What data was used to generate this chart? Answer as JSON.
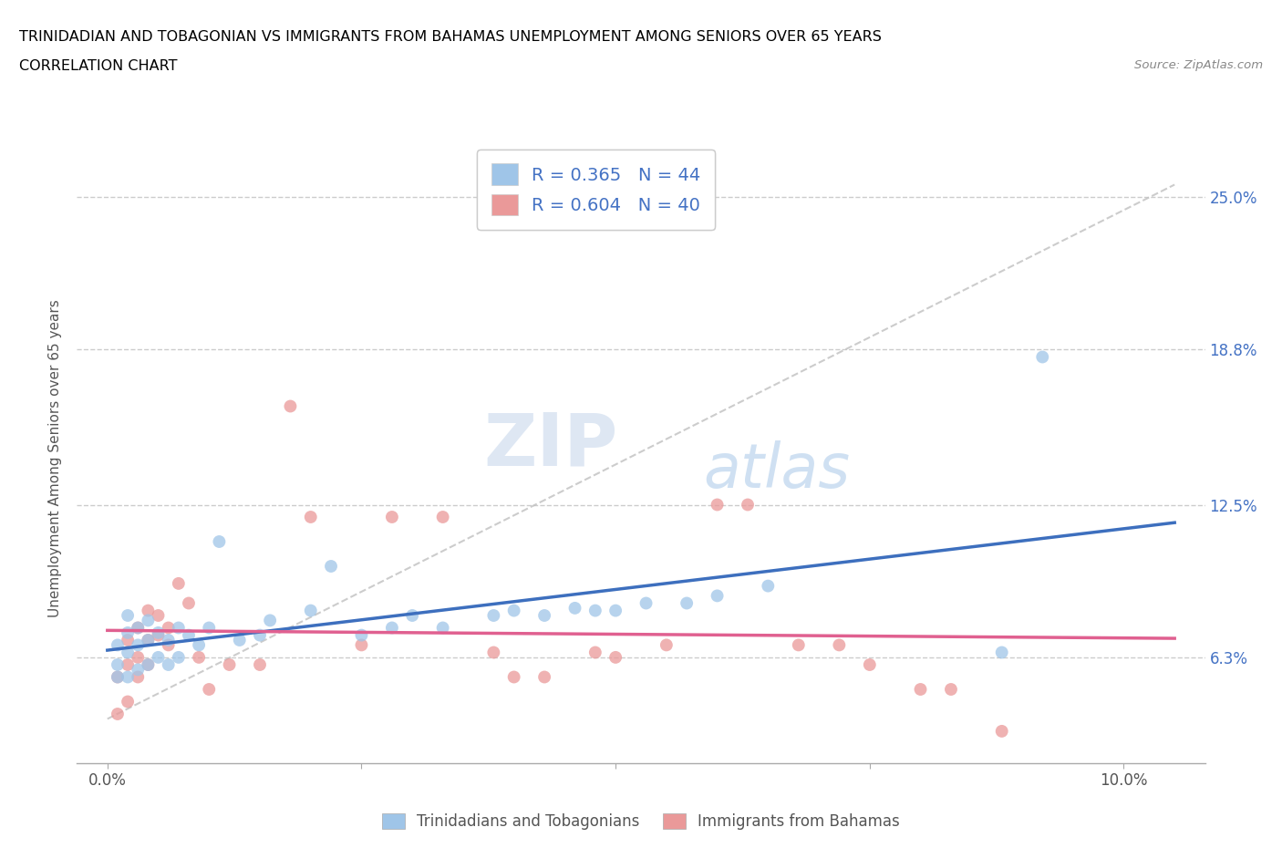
{
  "title_line1": "TRINIDADIAN AND TOBAGONIAN VS IMMIGRANTS FROM BAHAMAS UNEMPLOYMENT AMONG SENIORS OVER 65 YEARS",
  "title_line2": "CORRELATION CHART",
  "source_text": "Source: ZipAtlas.com",
  "ylabel": "Unemployment Among Seniors over 65 years",
  "xticklabels_bottom": [
    "0.0%",
    "10.0%"
  ],
  "xticks_bottom": [
    0.0,
    0.1
  ],
  "yticklabels_right": [
    "6.3%",
    "12.5%",
    "18.8%",
    "25.0%"
  ],
  "yticks_right": [
    0.063,
    0.125,
    0.188,
    0.25
  ],
  "xlim": [
    -0.003,
    0.108
  ],
  "ylim": [
    0.02,
    0.268
  ],
  "r_blue": 0.365,
  "n_blue": 44,
  "r_pink": 0.604,
  "n_pink": 40,
  "blue_color": "#9fc5e8",
  "pink_color": "#ea9999",
  "trend_blue_color": "#3d6fbe",
  "trend_pink_color": "#e06090",
  "trend_gray_color": "#c0c0c0",
  "watermark_zip": "ZIP",
  "watermark_atlas": "atlas",
  "legend_labels": [
    "Trinidadians and Tobagonians",
    "Immigrants from Bahamas"
  ],
  "blue_scatter_x": [
    0.001,
    0.001,
    0.001,
    0.002,
    0.002,
    0.002,
    0.002,
    0.003,
    0.003,
    0.003,
    0.004,
    0.004,
    0.004,
    0.005,
    0.005,
    0.006,
    0.006,
    0.007,
    0.007,
    0.008,
    0.009,
    0.01,
    0.011,
    0.013,
    0.015,
    0.016,
    0.02,
    0.022,
    0.025,
    0.028,
    0.03,
    0.033,
    0.038,
    0.04,
    0.043,
    0.046,
    0.048,
    0.05,
    0.053,
    0.057,
    0.06,
    0.065,
    0.088,
    0.092
  ],
  "blue_scatter_y": [
    0.055,
    0.06,
    0.068,
    0.055,
    0.065,
    0.073,
    0.08,
    0.058,
    0.068,
    0.075,
    0.06,
    0.07,
    0.078,
    0.063,
    0.073,
    0.06,
    0.07,
    0.063,
    0.075,
    0.072,
    0.068,
    0.075,
    0.11,
    0.07,
    0.072,
    0.078,
    0.082,
    0.1,
    0.072,
    0.075,
    0.08,
    0.075,
    0.08,
    0.082,
    0.08,
    0.083,
    0.082,
    0.082,
    0.085,
    0.085,
    0.088,
    0.092,
    0.065,
    0.185
  ],
  "pink_scatter_x": [
    0.001,
    0.001,
    0.002,
    0.002,
    0.002,
    0.003,
    0.003,
    0.003,
    0.004,
    0.004,
    0.004,
    0.005,
    0.005,
    0.006,
    0.006,
    0.007,
    0.008,
    0.009,
    0.01,
    0.012,
    0.015,
    0.018,
    0.02,
    0.025,
    0.028,
    0.033,
    0.038,
    0.04,
    0.043,
    0.048,
    0.05,
    0.055,
    0.06,
    0.063,
    0.068,
    0.072,
    0.075,
    0.08,
    0.083,
    0.088
  ],
  "pink_scatter_y": [
    0.04,
    0.055,
    0.045,
    0.06,
    0.07,
    0.055,
    0.063,
    0.075,
    0.06,
    0.07,
    0.082,
    0.072,
    0.08,
    0.068,
    0.075,
    0.093,
    0.085,
    0.063,
    0.05,
    0.06,
    0.06,
    0.165,
    0.12,
    0.068,
    0.12,
    0.12,
    0.065,
    0.055,
    0.055,
    0.065,
    0.063,
    0.068,
    0.125,
    0.125,
    0.068,
    0.068,
    0.06,
    0.05,
    0.05,
    0.033
  ],
  "gray_line_x": [
    0.0,
    0.105
  ],
  "gray_line_y": [
    0.038,
    0.255
  ]
}
